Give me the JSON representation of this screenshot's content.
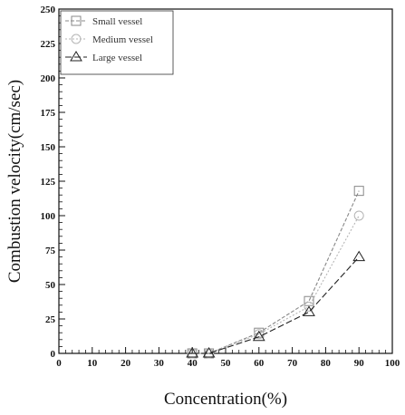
{
  "chart_data": {
    "type": "line",
    "xlabel": "Concentration(%)",
    "ylabel": "Combustion velocity(cm/sec)",
    "xlim": [
      0,
      100
    ],
    "ylim": [
      0,
      250
    ],
    "xticks": [
      0,
      10,
      20,
      30,
      40,
      50,
      60,
      70,
      80,
      90,
      100
    ],
    "yticks": [
      0,
      25,
      50,
      75,
      100,
      125,
      150,
      175,
      200,
      225,
      250
    ],
    "legend_position": "top-left",
    "grid": false,
    "series": [
      {
        "name": "Small vessel",
        "marker": "square",
        "color": "#888888",
        "x": [
          40,
          45,
          60,
          75,
          90
        ],
        "y": [
          0,
          0,
          15,
          38,
          118
        ]
      },
      {
        "name": "Medium vessel",
        "marker": "circle",
        "color": "#b5b5b5",
        "x": [
          40,
          45,
          60,
          75,
          90
        ],
        "y": [
          0,
          0,
          14,
          34,
          100
        ]
      },
      {
        "name": "Large vessel",
        "marker": "triangle",
        "color": "#222222",
        "x": [
          40,
          45,
          60,
          75,
          90
        ],
        "y": [
          0,
          0,
          12,
          30,
          70
        ]
      }
    ]
  }
}
